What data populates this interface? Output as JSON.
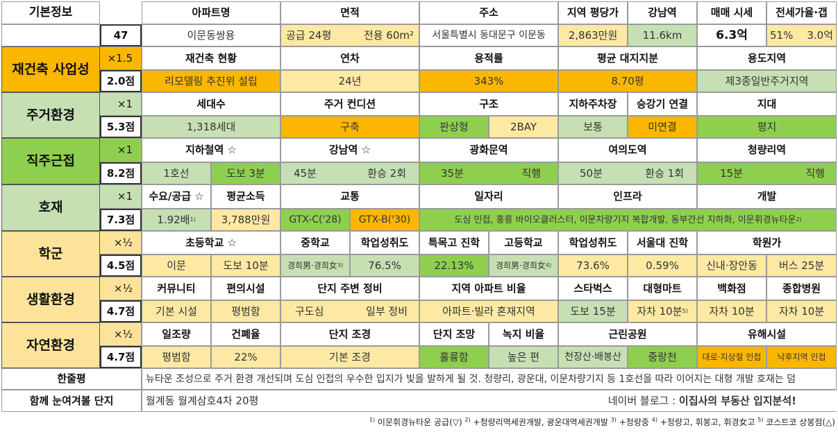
{
  "basic": {
    "label": "기본정보",
    "number": "47",
    "headers": [
      "아파트명",
      "면적",
      "주소",
      "지역 평당가",
      "강남역",
      "매매 시세",
      "전세가율·갭"
    ],
    "apt_name": "이문동쌍용",
    "area_supply": "공급 24평",
    "area_exclusive": "전용 60m²",
    "address": "서울특별시 동대문구 이문동",
    "price_per_pyeong": "2,863만원",
    "gangnam_distance": "11.6km",
    "sale_price": "6.3억",
    "jeonse_ratio": "51%",
    "gap": "3.0억"
  },
  "rebuild": {
    "label": "재건축 사업성",
    "multiplier": "×1.5",
    "score": "2.0점",
    "headers": [
      "재건축 현황",
      "연차",
      "용적률",
      "평균 대지지분",
      "용도지역"
    ],
    "status": "리모델링 추진위 설립",
    "age": "24년",
    "far": "343%",
    "land_share": "8.70평",
    "zoning": "제3종일반주거지역"
  },
  "living": {
    "label": "주거환경",
    "multiplier": "×1",
    "score": "5.3점",
    "headers": [
      "세대수",
      "주거 컨디션",
      "구조",
      "지하주차장",
      "승강기 연결",
      "지대"
    ],
    "households": "1,318세대",
    "condition": "구축",
    "structure_a": "판상형",
    "structure_b": "2BAY",
    "parking": "보통",
    "elevator": "미연결",
    "terrain": "평지"
  },
  "commute": {
    "label": "직주근접",
    "multiplier": "×1",
    "score": "8.2점",
    "headers": [
      "지하철역 ☆",
      "강남역 ☆",
      "광화문역",
      "여의도역",
      "청량리역"
    ],
    "subway_line": "1호선",
    "subway_walk": "도보 3분",
    "gangnam_time": "45분",
    "gangnam_transfer": "환승 2회",
    "gwanghwamun_time": "35분",
    "gwanghwamun_transfer": "직행",
    "yeouido_time": "50분",
    "yeouido_transfer": "환승 1회",
    "cheongnyangni_time": "15분",
    "cheongnyangni_transfer": "직행"
  },
  "boom": {
    "label": "호재",
    "multiplier": "×1",
    "score": "7.3점",
    "headers": [
      "수요/공급 ☆",
      "평균소득",
      "교통",
      "일자리",
      "인프라",
      "개발"
    ],
    "demand_supply": "1.92배",
    "demand_note": "1)",
    "avg_income": "3,788만원",
    "gtx_c": "GTX-C('28)",
    "gtx_b": "GTX-B('30)",
    "projects": "도심 인접, 홍릉 바이오클러스터, 이문차량기지 복합개발, 동부간선 지하화, 이문휘경뉴타운",
    "projects_note": "2)"
  },
  "school": {
    "label": "학군",
    "multiplier": "×½",
    "score": "4.5점",
    "headers": [
      "초등학교 ☆",
      "중학교",
      "학업성취도",
      "특목고 진학",
      "고등학교",
      "학업성취도",
      "서울대 진학",
      "학원가"
    ],
    "elementary": "이문",
    "elementary_walk": "도보 10분",
    "middle": "경희男·경희女",
    "middle_note": "3)",
    "middle_score": "76.5%",
    "special_hs": "22.13%",
    "high": "경희男·경희女",
    "high_note": "4)",
    "high_score": "73.6%",
    "snu": "0.59%",
    "academy": "신내·장안동",
    "academy_bus": "버스 25분"
  },
  "life": {
    "label": "생활환경",
    "multiplier": "×½",
    "score": "4.7점",
    "headers": [
      "커뮤니티",
      "편의시설",
      "단지 주변 정비",
      "지역 아파트 비율",
      "스타벅스",
      "대형마트",
      "백화점",
      "종합병원"
    ],
    "community": "기본 시설",
    "convenience": "평범함",
    "surroundings_a": "구도심",
    "surroundings_b": "일부 정비",
    "apt_ratio": "아파트·빌라 혼재지역",
    "starbucks": "도보 15분",
    "mart": "자차 10분",
    "mart_note": "5)",
    "department": "자차 10분",
    "hospital": "자차 10분"
  },
  "nature": {
    "label": "자연환경",
    "multiplier": "×½",
    "score": "4.7점",
    "headers": [
      "일조량",
      "건폐율",
      "단지 조경",
      "단지 조망",
      "녹지 비율",
      "근린공원",
      "유해시설"
    ],
    "sunlight": "평범함",
    "bcr": "22%",
    "landscape": "기본 조경",
    "view": "훌륭함",
    "green_ratio": "높은 편",
    "park_a": "천장산·배봉산",
    "park_b": "중랑천",
    "hazard_a": "대로·지상철 인접",
    "hazard_b": "낙후지역 인접"
  },
  "summary": {
    "label": "한줄평",
    "text": "뉴타운 조성으로 주거 환경 개선되며 도심 인접의 우수한 입지가 빛을 발하게 될 것. 청량리, 광운대, 이문차량기지 등 1호선을 따라 이어지는 대형 개발 호재는 덤"
  },
  "compare": {
    "label": "함께 눈여겨볼 단지",
    "text": "월계동 월계삼호4차 20평",
    "blog_prefix": "네이버 블로그 : ",
    "blog_name": "이집사의 부동산 입지분석!"
  },
  "footnotes": [
    {
      "no": "1)",
      "text": " 이문휘경뉴타운 공급(▽) "
    },
    {
      "no": "2)",
      "text": " +청량리역세권개발, 광운대역세권개발 "
    },
    {
      "no": "3)",
      "text": " +청량중 "
    },
    {
      "no": "4)",
      "text": " +청량고, 휘봉고, 휘경女고 "
    },
    {
      "no": "5)",
      "text": " 코스트코 상봉점(△)"
    }
  ]
}
